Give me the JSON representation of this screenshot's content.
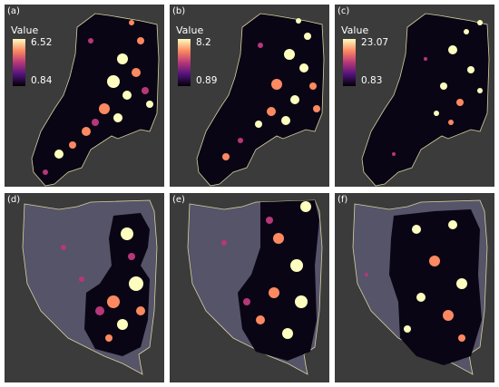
{
  "panels": [
    {
      "id": "a",
      "label": "(a)",
      "legend": {
        "title": "Value",
        "max": "6.52",
        "min": "0.84"
      }
    },
    {
      "id": "b",
      "label": "(b)",
      "legend": {
        "title": "Value",
        "max": "8.2",
        "min": "0.89"
      }
    },
    {
      "id": "c",
      "label": "(c)",
      "legend": {
        "title": "Value",
        "max": "23.07",
        "min": "0.83"
      }
    },
    {
      "id": "d",
      "label": "(d)"
    },
    {
      "id": "e",
      "label": "(e)"
    },
    {
      "id": "f",
      "label": "(f)"
    }
  ],
  "colors": {
    "background": "#3b3b3b",
    "outline": "#d8d2a0",
    "hot": "#fcfdbf",
    "mid": "#b73779",
    "dark": "#000004"
  }
}
